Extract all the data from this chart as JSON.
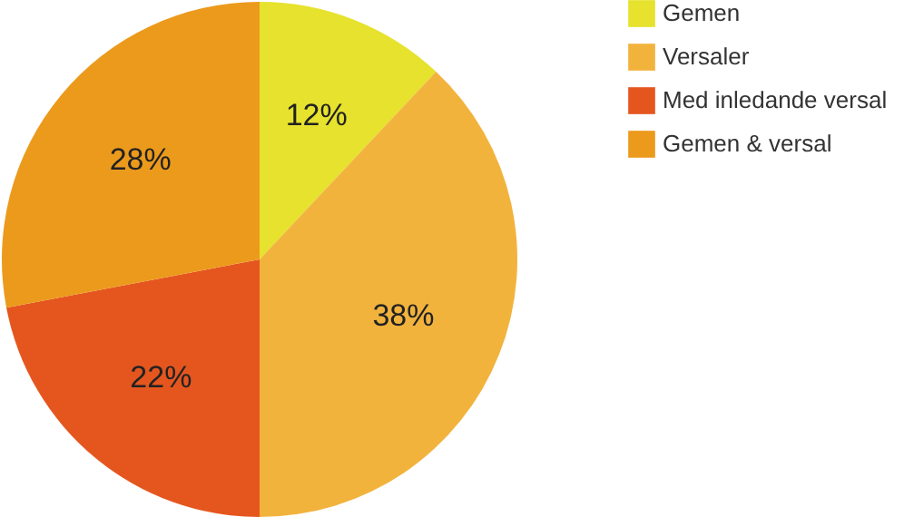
{
  "chart_data": {
    "type": "pie",
    "categories": [
      "Gemen",
      "Versaler",
      "Med inledande versal",
      "Gemen & versal"
    ],
    "values": [
      12,
      38,
      22,
      28
    ],
    "value_labels": [
      "12%",
      "38%",
      "22%",
      "28%"
    ],
    "colors": [
      "#e6e22e",
      "#f2b33d",
      "#e5561f",
      "#ec9a1c"
    ],
    "legend": "right"
  }
}
